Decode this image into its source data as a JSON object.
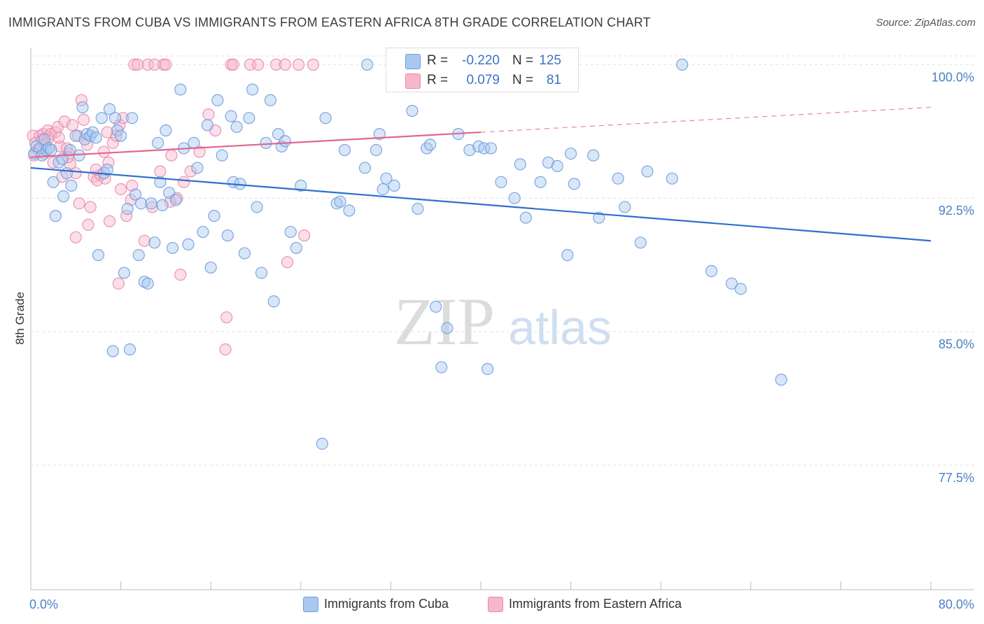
{
  "title": "IMMIGRANTS FROM CUBA VS IMMIGRANTS FROM EASTERN AFRICA 8TH GRADE CORRELATION CHART",
  "source": "Source: ZipAtlas.com",
  "watermark": {
    "zip": "ZIP",
    "atlas": "atlas"
  },
  "colors": {
    "cuba_fill": "#a9c8ef",
    "cuba_stroke": "#6f9fdc",
    "cuba_line": "#2f6fcf",
    "eafrica_fill": "#f6b6cc",
    "eafrica_stroke": "#ea8aab",
    "eafrica_line": "#e0678f",
    "tick_text": "#4a80c8",
    "grid": "#e2e2e2"
  },
  "stats": {
    "r_label": "R =",
    "n_label": "N =",
    "cuba": {
      "r": "-0.220",
      "n": "125"
    },
    "eafrica": {
      "r": "0.079",
      "n": "81"
    }
  },
  "legend": {
    "cuba": "Immigrants from Cuba",
    "eafrica": "Immigrants from Eastern Africa"
  },
  "chart_data": {
    "type": "scatter",
    "ylabel": "8th Grade",
    "xlim": [
      0,
      80
    ],
    "ylim": [
      70.5,
      100.8
    ],
    "x_tick_labels": [
      "0.0%",
      "80.0%"
    ],
    "y_ticks": [
      {
        "value": 100.0,
        "label": "100.0%"
      },
      {
        "value": 92.5,
        "label": "92.5%"
      },
      {
        "value": 85.0,
        "label": "85.0%"
      },
      {
        "value": 77.5,
        "label": "77.5%"
      }
    ],
    "grid": true,
    "series": [
      {
        "name": "Immigrants from Cuba",
        "trend": {
          "x0": 0,
          "y0": 94.2,
          "x1": 80,
          "y1": 90.1,
          "dashed_from": null
        },
        "points": [
          [
            0.3,
            95.0
          ],
          [
            0.5,
            95.4
          ],
          [
            0.8,
            95.3
          ],
          [
            1.0,
            94.9
          ],
          [
            1.2,
            95.8
          ],
          [
            1.4,
            95.2
          ],
          [
            1.6,
            95.3
          ],
          [
            1.8,
            95.2
          ],
          [
            2.0,
            93.4
          ],
          [
            2.2,
            91.5
          ],
          [
            2.5,
            94.5
          ],
          [
            2.8,
            94.7
          ],
          [
            2.9,
            92.6
          ],
          [
            3.2,
            93.9
          ],
          [
            3.5,
            95.2
          ],
          [
            3.6,
            93.2
          ],
          [
            4.0,
            96.0
          ],
          [
            4.3,
            94.9
          ],
          [
            4.6,
            97.6
          ],
          [
            4.8,
            95.8
          ],
          [
            5.0,
            96.1
          ],
          [
            5.3,
            96.0
          ],
          [
            5.5,
            96.2
          ],
          [
            5.8,
            95.9
          ],
          [
            6.0,
            89.3
          ],
          [
            6.3,
            97.0
          ],
          [
            6.5,
            93.9
          ],
          [
            6.8,
            94.1
          ],
          [
            7.0,
            97.5
          ],
          [
            7.3,
            83.9
          ],
          [
            7.5,
            97.0
          ],
          [
            7.7,
            96.3
          ],
          [
            8.0,
            96.0
          ],
          [
            8.3,
            88.3
          ],
          [
            8.6,
            91.9
          ],
          [
            8.8,
            84.0
          ],
          [
            9.0,
            97.0
          ],
          [
            9.3,
            92.7
          ],
          [
            9.6,
            89.3
          ],
          [
            9.8,
            92.2
          ],
          [
            10.1,
            87.8
          ],
          [
            10.4,
            87.7
          ],
          [
            10.7,
            92.2
          ],
          [
            11.0,
            90.0
          ],
          [
            11.3,
            95.6
          ],
          [
            11.5,
            93.4
          ],
          [
            11.7,
            92.1
          ],
          [
            12.0,
            96.3
          ],
          [
            12.3,
            92.8
          ],
          [
            12.6,
            89.7
          ],
          [
            12.9,
            92.4
          ],
          [
            13.3,
            98.6
          ],
          [
            13.6,
            95.3
          ],
          [
            14.0,
            89.9
          ],
          [
            14.5,
            95.6
          ],
          [
            14.8,
            94.2
          ],
          [
            15.3,
            90.6
          ],
          [
            15.7,
            96.6
          ],
          [
            16.0,
            88.6
          ],
          [
            16.3,
            91.5
          ],
          [
            16.6,
            98.0
          ],
          [
            17.0,
            94.9
          ],
          [
            17.5,
            90.4
          ],
          [
            17.8,
            97.1
          ],
          [
            18.0,
            93.4
          ],
          [
            18.3,
            96.5
          ],
          [
            18.6,
            93.3
          ],
          [
            19.0,
            89.4
          ],
          [
            19.4,
            97.0
          ],
          [
            19.7,
            98.6
          ],
          [
            20.1,
            92.0
          ],
          [
            20.5,
            88.3
          ],
          [
            20.9,
            95.6
          ],
          [
            21.3,
            98.0
          ],
          [
            21.6,
            86.7
          ],
          [
            22.0,
            96.1
          ],
          [
            22.3,
            95.4
          ],
          [
            22.6,
            95.7
          ],
          [
            23.1,
            90.6
          ],
          [
            23.6,
            89.7
          ],
          [
            24.0,
            93.2
          ],
          [
            25.9,
            78.7
          ],
          [
            26.2,
            97.0
          ],
          [
            27.2,
            92.2
          ],
          [
            27.5,
            92.3
          ],
          [
            27.9,
            95.2
          ],
          [
            28.3,
            91.8
          ],
          [
            29.7,
            94.2
          ],
          [
            30.7,
            95.2
          ],
          [
            31.0,
            96.1
          ],
          [
            31.3,
            93.0
          ],
          [
            31.6,
            93.6
          ],
          [
            32.3,
            93.2
          ],
          [
            33.9,
            97.4
          ],
          [
            34.4,
            91.9
          ],
          [
            35.2,
            95.3
          ],
          [
            35.5,
            95.5
          ],
          [
            36.0,
            86.4
          ],
          [
            36.5,
            83.0
          ],
          [
            37.0,
            85.2
          ],
          [
            38.0,
            96.1
          ],
          [
            39.0,
            95.2
          ],
          [
            39.8,
            95.4
          ],
          [
            40.3,
            95.3
          ],
          [
            40.6,
            82.9
          ],
          [
            40.9,
            95.3
          ],
          [
            41.8,
            93.4
          ],
          [
            43.0,
            92.5
          ],
          [
            43.5,
            94.4
          ],
          [
            44.0,
            91.4
          ],
          [
            45.3,
            93.4
          ],
          [
            46.0,
            94.5
          ],
          [
            46.8,
            94.3
          ],
          [
            47.7,
            89.3
          ],
          [
            48.0,
            95.0
          ],
          [
            48.3,
            93.3
          ],
          [
            50.0,
            94.9
          ],
          [
            50.5,
            91.4
          ],
          [
            52.2,
            93.6
          ],
          [
            52.8,
            92.0
          ],
          [
            54.2,
            90.0
          ],
          [
            54.8,
            94.0
          ],
          [
            57.0,
            93.6
          ],
          [
            60.5,
            88.4
          ],
          [
            62.3,
            87.7
          ],
          [
            63.1,
            87.4
          ],
          [
            66.7,
            82.3
          ],
          [
            29.9,
            100.0
          ],
          [
            57.9,
            100.0
          ]
        ]
      },
      {
        "name": "Immigrants from Eastern Africa",
        "trend": {
          "x0": 0,
          "y0": 94.8,
          "x1": 80,
          "y1": 97.6,
          "dashed_from": 40
        },
        "points": [
          [
            0.2,
            96.0
          ],
          [
            0.4,
            95.6
          ],
          [
            0.6,
            95.2
          ],
          [
            0.8,
            96.0
          ],
          [
            1.0,
            95.8
          ],
          [
            1.1,
            96.1
          ],
          [
            1.3,
            95.5
          ],
          [
            1.5,
            96.3
          ],
          [
            1.6,
            95.9
          ],
          [
            1.8,
            96.1
          ],
          [
            2.0,
            94.5
          ],
          [
            2.2,
            96.2
          ],
          [
            2.4,
            96.5
          ],
          [
            2.6,
            95.4
          ],
          [
            2.8,
            93.7
          ],
          [
            3.0,
            96.8
          ],
          [
            3.2,
            95.3
          ],
          [
            3.5,
            94.4
          ],
          [
            3.7,
            96.6
          ],
          [
            4.0,
            93.9
          ],
          [
            4.2,
            96.0
          ],
          [
            4.5,
            98.0
          ],
          [
            4.7,
            96.9
          ],
          [
            5.0,
            95.5
          ],
          [
            5.3,
            92.0
          ],
          [
            5.6,
            93.7
          ],
          [
            5.9,
            93.5
          ],
          [
            6.2,
            93.8
          ],
          [
            6.5,
            95.1
          ],
          [
            6.8,
            96.2
          ],
          [
            7.0,
            91.2
          ],
          [
            7.3,
            95.6
          ],
          [
            7.6,
            96.0
          ],
          [
            7.9,
            96.6
          ],
          [
            8.2,
            97.0
          ],
          [
            8.5,
            91.5
          ],
          [
            8.9,
            92.4
          ],
          [
            9.2,
            100.0
          ],
          [
            9.5,
            100.0
          ],
          [
            10.1,
            90.1
          ],
          [
            10.4,
            100.0
          ],
          [
            11.0,
            100.0
          ],
          [
            11.8,
            100.0
          ],
          [
            12.0,
            100.0
          ],
          [
            12.4,
            92.3
          ],
          [
            13.0,
            92.5
          ],
          [
            13.6,
            93.4
          ],
          [
            14.2,
            94.0
          ],
          [
            15.0,
            95.1
          ],
          [
            15.8,
            97.2
          ],
          [
            16.4,
            96.3
          ],
          [
            17.3,
            84.0
          ],
          [
            17.8,
            100.0
          ],
          [
            18.0,
            100.0
          ],
          [
            19.5,
            100.0
          ],
          [
            20.2,
            100.0
          ],
          [
            21.8,
            100.0
          ],
          [
            22.6,
            100.0
          ],
          [
            23.8,
            100.0
          ],
          [
            25.1,
            100.0
          ],
          [
            3.4,
            95.0
          ],
          [
            4.3,
            92.2
          ],
          [
            5.1,
            91.0
          ],
          [
            6.6,
            93.6
          ],
          [
            7.8,
            87.7
          ],
          [
            9.0,
            93.2
          ],
          [
            10.8,
            92.0
          ],
          [
            13.3,
            88.2
          ],
          [
            17.4,
            85.8
          ],
          [
            22.8,
            88.9
          ],
          [
            24.3,
            90.4
          ],
          [
            4.0,
            90.3
          ],
          [
            8.0,
            93.0
          ],
          [
            11.5,
            94.0
          ],
          [
            12.5,
            94.9
          ],
          [
            2.5,
            95.9
          ],
          [
            1.2,
            95.0
          ],
          [
            0.3,
            94.9
          ],
          [
            3.3,
            94.8
          ],
          [
            5.8,
            94.1
          ],
          [
            6.9,
            94.5
          ]
        ]
      }
    ]
  }
}
